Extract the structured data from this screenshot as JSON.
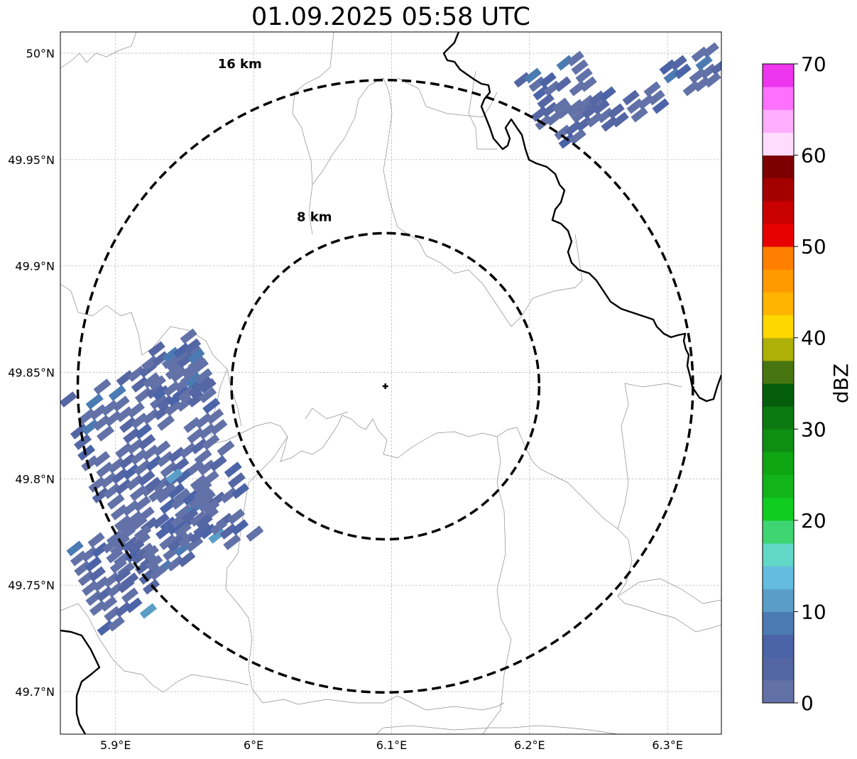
{
  "title": "01.09.2025 05:58 UTC",
  "map": {
    "lat_labels": [
      {
        "lat": 50.0,
        "text": "50°N"
      },
      {
        "lat": 49.95,
        "text": "49.95°N"
      },
      {
        "lat": 49.9,
        "text": "49.9°N"
      },
      {
        "lat": 49.85,
        "text": "49.85°N"
      },
      {
        "lat": 49.8,
        "text": "49.8°N"
      },
      {
        "lat": 49.75,
        "text": "49.75°N"
      },
      {
        "lat": 49.7,
        "text": "49.7°N"
      }
    ],
    "lon_labels": [
      {
        "lon": 5.9,
        "text": "5.9°E"
      },
      {
        "lon": 6.0,
        "text": "6°E"
      },
      {
        "lon": 6.1,
        "text": "6.1°E"
      },
      {
        "lon": 6.2,
        "text": "6.2°E"
      },
      {
        "lon": 6.3,
        "text": "6.3°E"
      }
    ],
    "extent": {
      "lon_min": 5.86,
      "lon_max": 6.339,
      "lat_min": 49.68,
      "lat_max": 50.01
    },
    "radar_site": {
      "lon": 6.0955,
      "lat": 49.8435
    },
    "range_rings": [
      {
        "radius_km": 8,
        "label": "8 km"
      },
      {
        "radius_km": 16,
        "label": "16 km"
      }
    ]
  },
  "colorbar": {
    "label": "dBZ",
    "min": 0,
    "max": 70,
    "ticks": [
      "0",
      "10",
      "20",
      "30",
      "40",
      "50",
      "60",
      "70"
    ],
    "colors": [
      "#6272a8",
      "#5566a4",
      "#4b64a8",
      "#4b7bb2",
      "#5a9ec8",
      "#64bce0",
      "#62d8c8",
      "#3ed572",
      "#10cc20",
      "#11b51a",
      "#0fa614",
      "#0e8e12",
      "#0b7a10",
      "#055e0b",
      "#477610",
      "#aeb008",
      "#ffd700",
      "#ffb500",
      "#ff9a00",
      "#ff7f00",
      "#e80000",
      "#c90000",
      "#a50000",
      "#7d0000",
      "#ffdcff",
      "#ffadff",
      "#ff70ff",
      "#ee35ee"
    ]
  }
}
